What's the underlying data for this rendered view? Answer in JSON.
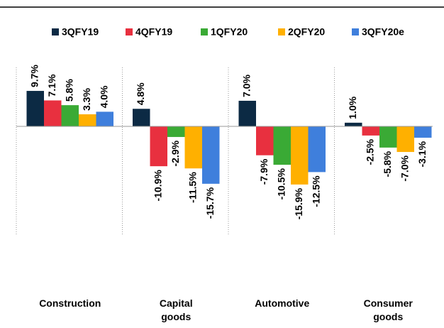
{
  "chart_data": {
    "type": "bar",
    "categories": [
      "Construction",
      "Capital goods",
      "Automotive",
      "Consumer goods"
    ],
    "series": [
      {
        "name": "3QFY19",
        "color": "#0c2a44",
        "values": [
          9.7,
          4.8,
          7.0,
          1.0
        ],
        "value_labels": [
          "9.7%",
          "4.8%",
          "7.0%",
          "1.0%"
        ]
      },
      {
        "name": "4QFY19",
        "color": "#e8303f",
        "values": [
          7.1,
          -10.9,
          -7.9,
          -2.5
        ],
        "value_labels": [
          "7.1%",
          "-10.9%",
          "-7.9%",
          "-2.5%"
        ]
      },
      {
        "name": "1QFY20",
        "color": "#3aaa35",
        "values": [
          5.8,
          -2.9,
          -10.5,
          -5.8
        ],
        "value_labels": [
          "5.8%",
          "-2.9%",
          "-10.5%",
          "-5.8%"
        ]
      },
      {
        "name": "2QFY20",
        "color": "#ffb000",
        "values": [
          3.3,
          -11.5,
          -15.9,
          -7.0
        ],
        "value_labels": [
          "3.3%",
          "-11.5%",
          "-15.9%",
          "-7.0%"
        ]
      },
      {
        "name": "3QFY20e",
        "color": "#3f7fdc",
        "values": [
          4.0,
          -15.7,
          -12.5,
          -3.1
        ],
        "value_labels": [
          "4.0%",
          "-15.7%",
          "-12.5%",
          "-3.1%"
        ]
      }
    ],
    "ylim": [
      -30,
      15
    ],
    "legend": "top"
  }
}
